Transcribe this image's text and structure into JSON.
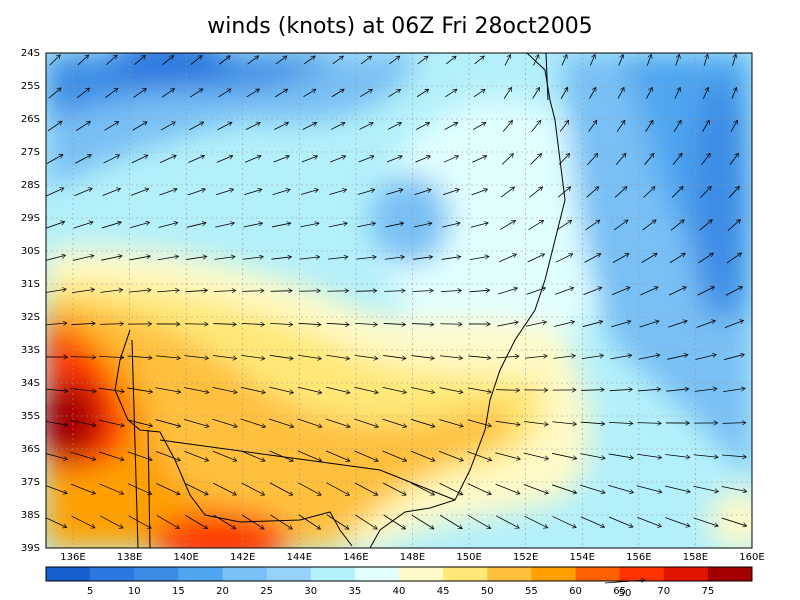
{
  "title": "winds (knots) at 06Z Fri 28oct2005",
  "lat_labels": [
    "24S",
    "25S",
    "26S",
    "27S",
    "28S",
    "29S",
    "30S",
    "31S",
    "32S",
    "33S",
    "34S",
    "35S",
    "36S",
    "37S",
    "38S",
    "39S"
  ],
  "lon_labels": [
    "136E",
    "138E",
    "140E",
    "142E",
    "144E",
    "146E",
    "148E",
    "150E",
    "152E",
    "154E",
    "156E",
    "158E",
    "160E"
  ],
  "colorbar": {
    "labels": [
      "5",
      "10",
      "15",
      "20",
      "25",
      "30",
      "35",
      "40",
      "45",
      "50",
      "55",
      "60",
      "65",
      "70",
      "75"
    ],
    "colors": [
      "#1a5fd0",
      "#2d78e0",
      "#3c8ce6",
      "#50a5f0",
      "#78c0f5",
      "#96d2fa",
      "#b4f0fa",
      "#e1ffff",
      "#fffac8",
      "#ffe878",
      "#ffc03c",
      "#ffa000",
      "#ff6000",
      "#ff3200",
      "#e11400",
      "#a50000"
    ]
  },
  "vector_reference": "50"
}
